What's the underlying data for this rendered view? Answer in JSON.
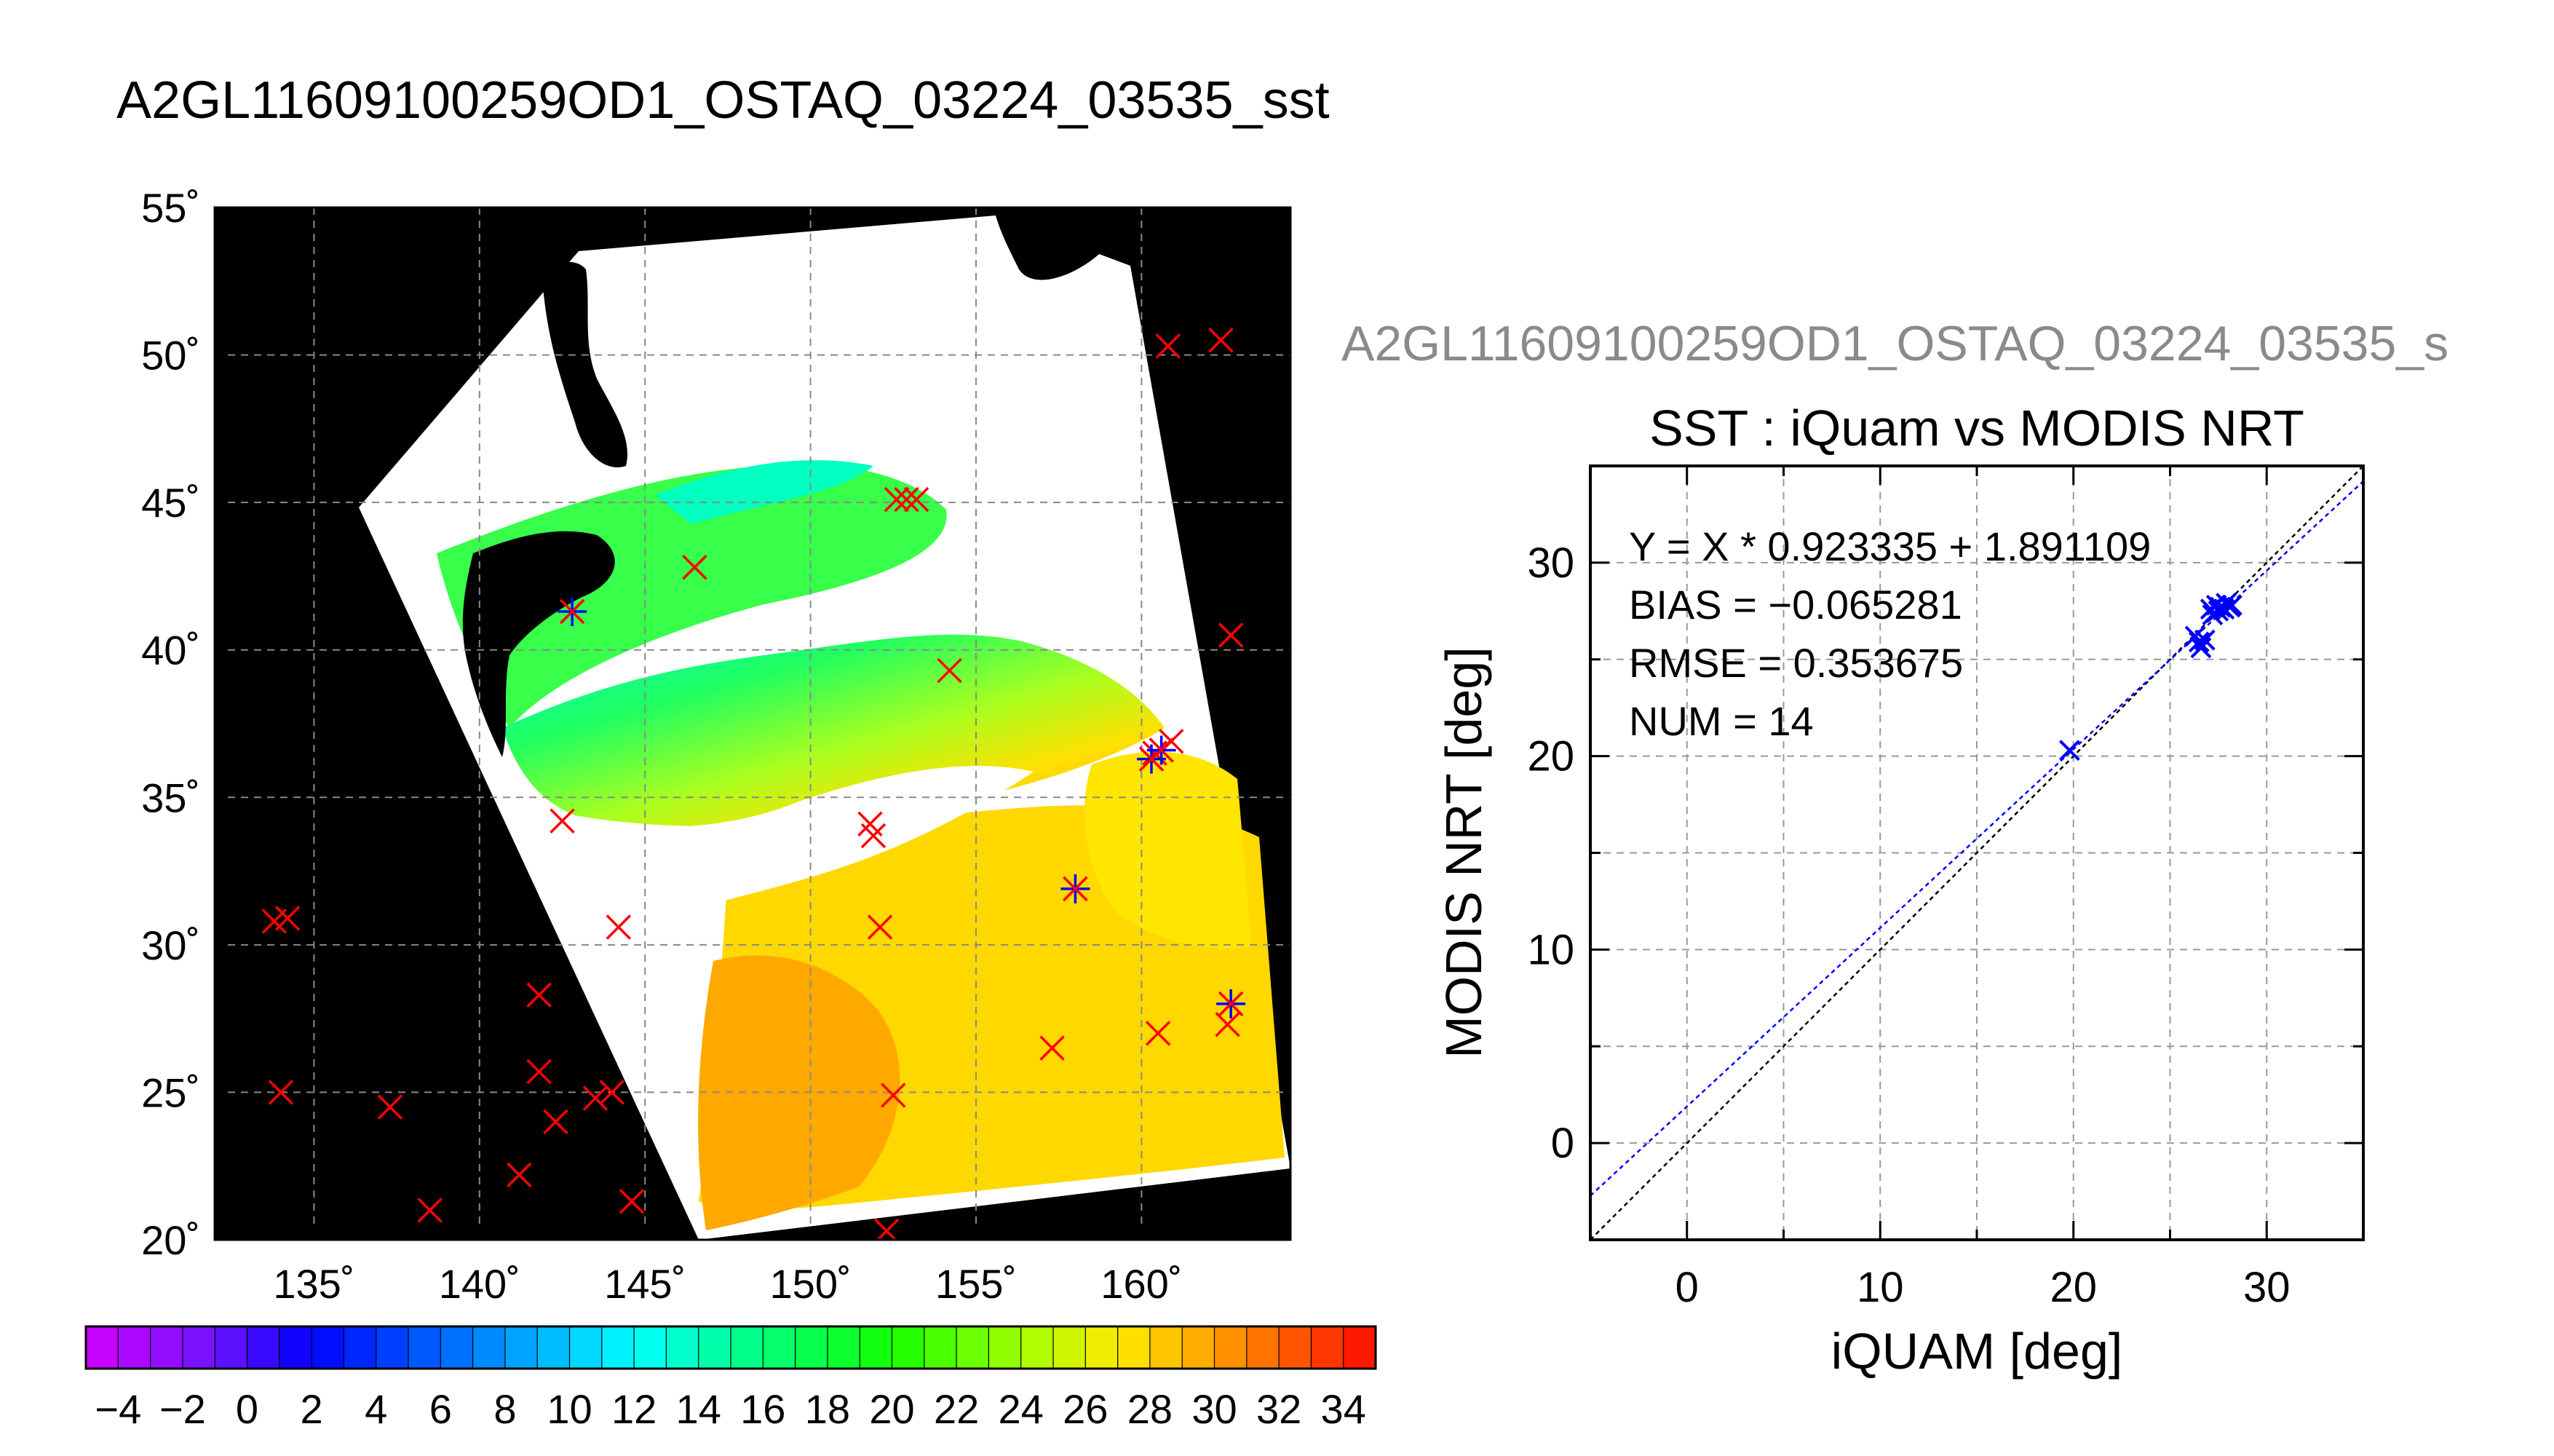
{
  "main_title": "A2GL11609100259OD1_OSTAQ_03224_03535_sst",
  "map": {
    "lon_range": [
      132,
      164.5
    ],
    "lat_range": [
      20,
      55
    ],
    "lon_ticks": [
      "135˚",
      "140˚",
      "145˚",
      "150˚",
      "155˚",
      "160˚"
    ],
    "lon_tick_values": [
      135,
      140,
      145,
      150,
      155,
      160
    ],
    "lat_ticks": [
      "20˚",
      "25˚",
      "30˚",
      "35˚",
      "40˚",
      "45˚",
      "50˚",
      "55˚"
    ],
    "lat_tick_values": [
      20,
      25,
      30,
      35,
      40,
      45,
      50,
      55
    ],
    "background_color": "#000000",
    "cloud_color": "#ffffff",
    "in_situ_marker_color": "#ff0000",
    "matchup_marker_color": "#0000ff",
    "in_situ_points": [
      [
        133.8,
        30.8
      ],
      [
        134.2,
        30.9
      ],
      [
        134.0,
        25.0
      ],
      [
        137.3,
        24.5
      ],
      [
        138.5,
        21.0
      ],
      [
        141.2,
        22.2
      ],
      [
        141.8,
        28.3
      ],
      [
        141.8,
        25.7
      ],
      [
        142.3,
        24.0
      ],
      [
        143.5,
        24.8
      ],
      [
        144.0,
        25.0
      ],
      [
        144.6,
        21.3
      ],
      [
        144.2,
        30.6
      ],
      [
        142.5,
        34.2
      ],
      [
        142.8,
        41.3
      ],
      [
        146.5,
        42.8
      ],
      [
        152.6,
        45.1
      ],
      [
        152.9,
        45.1
      ],
      [
        153.2,
        45.1
      ],
      [
        154.2,
        39.3
      ],
      [
        151.8,
        34.1
      ],
      [
        151.9,
        33.7
      ],
      [
        152.1,
        30.6
      ],
      [
        152.3,
        20.3
      ],
      [
        152.5,
        24.9
      ],
      [
        157.3,
        26.5
      ],
      [
        158.0,
        31.9
      ],
      [
        160.3,
        36.3
      ],
      [
        160.4,
        36.5
      ],
      [
        160.6,
        36.6
      ],
      [
        160.9,
        36.9
      ],
      [
        160.5,
        27.0
      ],
      [
        160.8,
        50.3
      ],
      [
        162.4,
        50.5
      ],
      [
        162.7,
        40.5
      ],
      [
        162.6,
        27.3
      ],
      [
        162.7,
        28.0
      ]
    ],
    "matchup_points": [
      [
        142.8,
        41.3
      ],
      [
        158.0,
        31.9
      ],
      [
        160.3,
        36.3
      ],
      [
        160.6,
        36.6
      ],
      [
        162.7,
        28.0
      ]
    ]
  },
  "colorbar": {
    "min": -5,
    "max": 35,
    "step": 1,
    "tick_labels": [
      "−4",
      "−2",
      "0",
      "2",
      "4",
      "6",
      "8",
      "10",
      "12",
      "14",
      "16",
      "18",
      "20",
      "22",
      "24",
      "26",
      "28",
      "30",
      "32",
      "34"
    ],
    "tick_values": [
      -4,
      -2,
      0,
      2,
      4,
      6,
      8,
      10,
      12,
      14,
      16,
      18,
      20,
      22,
      24,
      26,
      28,
      30,
      32,
      34
    ]
  },
  "scatter": {
    "file_label": "A2GL11609100259OD1_OSTAQ_03224_03535_s",
    "title": "SST : iQuam vs MODIS NRT",
    "xlabel": "iQUAM [deg]",
    "ylabel": "MODIS NRT [deg]",
    "stats": {
      "fit": "Y = X * 0.923335 + 1.891109",
      "bias": "BIAS = −0.065281",
      "rmse": "RMSE = 0.353675",
      "num": "NUM = 14"
    },
    "xlim": [
      -5,
      35
    ],
    "ylim": [
      -5,
      35
    ],
    "x_ticks": [
      "0",
      "10",
      "20",
      "30"
    ],
    "x_tick_values": [
      0,
      10,
      20,
      30
    ],
    "y_ticks": [
      "0",
      "10",
      "20",
      "30"
    ],
    "y_tick_values": [
      0,
      10,
      20,
      30
    ],
    "fit_slope": 0.923335,
    "fit_intercept": 1.891109,
    "marker_color": "#0000ff",
    "fit_line_color": "#0000ff",
    "one_to_one_color": "#000000"
  },
  "chart_data": [
    {
      "type": "heatmap",
      "title": "A2GL11609100259OD1_OSTAQ_03224_03535_sst",
      "xlabel": "",
      "ylabel": "",
      "xlim": [
        132,
        164.5
      ],
      "ylim": [
        20,
        55
      ],
      "x_ticks": [
        "135˚",
        "140˚",
        "145˚",
        "150˚",
        "155˚",
        "160˚"
      ],
      "y_ticks": [
        "20˚",
        "25˚",
        "30˚",
        "35˚",
        "40˚",
        "45˚",
        "50˚",
        "55˚"
      ],
      "colorbar_range": [
        -5,
        35
      ],
      "grid": true
    },
    {
      "type": "scatter",
      "title": "SST : iQuam vs MODIS NRT",
      "xlabel": "iQUAM [deg]",
      "ylabel": "MODIS NRT [deg]",
      "xlim": [
        -5,
        35
      ],
      "ylim": [
        -5,
        35
      ],
      "grid": true,
      "x": [
        19.8,
        26.3,
        26.5,
        26.6,
        26.8,
        27.1,
        27.2,
        27.4,
        27.5,
        27.6,
        27.8,
        27.9,
        28.1,
        28.2
      ],
      "y": [
        20.3,
        26.2,
        25.9,
        25.6,
        26.0,
        27.6,
        27.3,
        27.8,
        27.5,
        27.7,
        27.6,
        27.9,
        27.7,
        27.8
      ]
    }
  ]
}
